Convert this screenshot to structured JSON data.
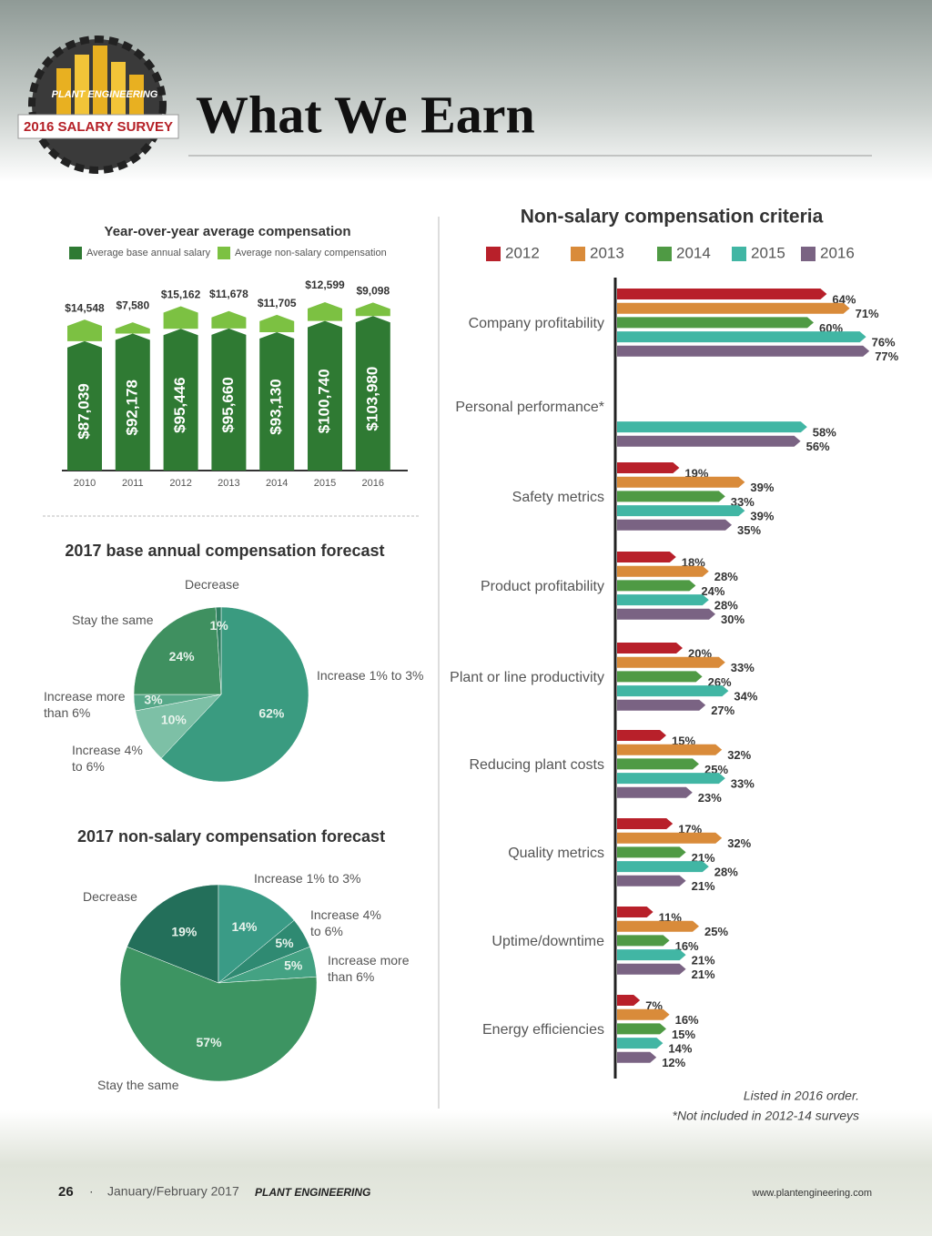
{
  "header": {
    "title": "What We Earn",
    "logo_brand": "PLANT ENGINEERING",
    "logo_band": "2016 SALARY SURVEY"
  },
  "chart_data": [
    {
      "type": "bar",
      "stacked": true,
      "title": "Year-over-year average compensation",
      "categories": [
        "2010",
        "2011",
        "2012",
        "2013",
        "2014",
        "2015",
        "2016"
      ],
      "series": [
        {
          "name": "Average base annual salary",
          "color": "#2f7a33",
          "values": [
            87039,
            92178,
            95446,
            95660,
            93130,
            100740,
            103980
          ],
          "value_labels": [
            "$87,039",
            "$92,178",
            "$95,446",
            "$95,660",
            "$93,130",
            "$100,740",
            "$103,980"
          ]
        },
        {
          "name": "Average non-salary compensation",
          "color": "#7cc142",
          "values": [
            14548,
            7580,
            15162,
            11678,
            11705,
            12599,
            9098
          ],
          "value_labels": [
            "$14,548",
            "$7,580",
            "$15,162",
            "$11,678",
            "$11,705",
            "$12,599",
            "$9,098"
          ]
        }
      ]
    },
    {
      "type": "pie",
      "title": "2017 base annual compensation forecast",
      "categories": [
        "Increase 1% to 3%",
        "Increase 4% to 6%",
        "Increase more than 6%",
        "Stay the same",
        "Decrease"
      ],
      "values": [
        62,
        10,
        3,
        24,
        1
      ],
      "value_labels": [
        "62%",
        "10%",
        "3%",
        "24%",
        "1%"
      ],
      "colors": [
        "#3a9b80",
        "#7dc0a6",
        "#56a888",
        "#3f9060",
        "#2f7f60"
      ]
    },
    {
      "type": "pie",
      "title": "2017 non-salary compensation forecast",
      "categories": [
        "Decrease",
        "Increase 1% to 3%",
        "Increase 4% to 6%",
        "Increase more than 6%",
        "Stay the same"
      ],
      "values": [
        19,
        14,
        5,
        5,
        57
      ],
      "value_labels": [
        "19%",
        "14%",
        "5%",
        "5%",
        "57%"
      ],
      "colors": [
        "#236f5a",
        "#3a9b86",
        "#2f8a72",
        "#44a283",
        "#3d9462"
      ]
    },
    {
      "type": "hbar",
      "title": "Non-salary compensation criteria",
      "categories": [
        "Company profitability",
        "Personal performance*",
        "Safety metrics",
        "Product profitability",
        "Plant or line productivity",
        "Reducing plant costs",
        "Quality metrics",
        "Uptime/downtime",
        "Energy efficiencies"
      ],
      "series": [
        {
          "name": "2012",
          "color": "#b8202a",
          "values": [
            64,
            null,
            19,
            18,
            20,
            15,
            17,
            11,
            7
          ],
          "value_labels": [
            "64%",
            null,
            "19%",
            "18%",
            "20%",
            "15%",
            "17%",
            "11%",
            "7%"
          ]
        },
        {
          "name": "2013",
          "color": "#d98b3a",
          "values": [
            71,
            null,
            39,
            28,
            33,
            32,
            32,
            25,
            16
          ],
          "value_labels": [
            "71%",
            null,
            "39%",
            "28%",
            "33%",
            "32%",
            "32%",
            "25%",
            "16%"
          ]
        },
        {
          "name": "2014",
          "color": "#4f9a44",
          "values": [
            60,
            null,
            33,
            24,
            26,
            25,
            21,
            16,
            15
          ],
          "value_labels": [
            "60%",
            null,
            "33%",
            "24%",
            "26%",
            "25%",
            "21%",
            "16%",
            "15%"
          ]
        },
        {
          "name": "2015",
          "color": "#41b6a4",
          "values": [
            76,
            58,
            39,
            28,
            34,
            33,
            28,
            21,
            14
          ],
          "value_labels": [
            "76%",
            "58%",
            "39%",
            "28%",
            "34%",
            "33%",
            "28%",
            "21%",
            "14%"
          ]
        },
        {
          "name": "2016",
          "color": "#7a6383",
          "values": [
            77,
            56,
            35,
            30,
            27,
            23,
            21,
            21,
            12
          ],
          "value_labels": [
            "77%",
            "56%",
            "35%",
            "30%",
            "27%",
            "23%",
            "21%",
            "21%",
            "12%"
          ]
        }
      ],
      "notes": [
        "Listed in 2016 order.",
        "*Not included in 2012-14 surveys"
      ]
    }
  ],
  "footer": {
    "page": "26",
    "issue": "January/February 2017",
    "magazine": "PLANT ENGINEERING",
    "url": "www.plantengineering.com"
  }
}
